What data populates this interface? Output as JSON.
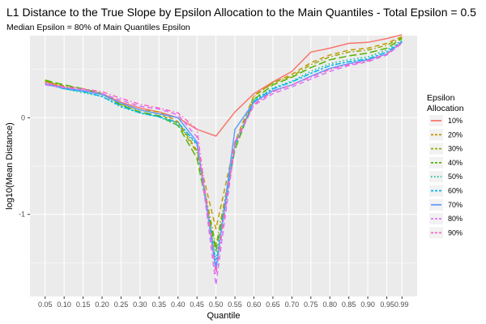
{
  "chart_data": {
    "type": "line",
    "title": "L1 Distance to the True Slope by Epsilon Allocation to the Main Quantiles - Total Epsilon = 0.5",
    "subtitle": "Median Epsilon = 80% of Main Quantiles Epsilon",
    "xlabel": "Quantile",
    "ylabel": "log10(Mean Distance)",
    "x": [
      0.05,
      0.1,
      0.15,
      0.2,
      0.25,
      0.3,
      0.35,
      0.4,
      0.45,
      0.5,
      0.55,
      0.6,
      0.65,
      0.7,
      0.75,
      0.8,
      0.85,
      0.9,
      0.95,
      0.99
    ],
    "x_tick_labels": [
      "0.05",
      "0.10",
      "0.15",
      "0.20",
      "0.25",
      "0.30",
      "0.35",
      "0.40",
      "0.45",
      "0.50",
      "0.55",
      "0.60",
      "0.65",
      "0.70",
      "0.75",
      "0.80",
      "0.85",
      "0.90",
      "0.950.99"
    ],
    "xlim": [
      0.01,
      1.03
    ],
    "ylim": [
      -1.85,
      0.85
    ],
    "y_ticks": [
      -1,
      0
    ],
    "y_tick_labels": [
      "-1",
      "0"
    ],
    "grid": true,
    "legend_position": "right",
    "legend_title": "Epsilon\nAllocation",
    "series": [
      {
        "name": "10%",
        "color": "#F8766D",
        "dash": "solid",
        "values": [
          0.37,
          0.31,
          0.28,
          0.25,
          0.16,
          0.1,
          0.06,
          0.0,
          -0.12,
          -0.19,
          0.06,
          0.25,
          0.37,
          0.48,
          0.68,
          0.72,
          0.77,
          0.78,
          0.82,
          0.86
        ]
      },
      {
        "name": "20%",
        "color": "#C49A00",
        "dash": "dashed",
        "values": [
          0.38,
          0.32,
          0.28,
          0.24,
          0.14,
          0.08,
          0.06,
          -0.04,
          -0.34,
          -1.15,
          -0.25,
          0.23,
          0.36,
          0.45,
          0.57,
          0.65,
          0.7,
          0.72,
          0.77,
          0.84
        ]
      },
      {
        "name": "30%",
        "color": "#99A800",
        "dash": "dotdash",
        "values": [
          0.38,
          0.33,
          0.3,
          0.25,
          0.14,
          0.08,
          0.04,
          -0.06,
          -0.36,
          -1.33,
          -0.28,
          0.22,
          0.36,
          0.43,
          0.55,
          0.63,
          0.68,
          0.7,
          0.75,
          0.83
        ]
      },
      {
        "name": "40%",
        "color": "#53B400",
        "dash": "longdash",
        "values": [
          0.39,
          0.34,
          0.3,
          0.25,
          0.13,
          0.06,
          0.02,
          -0.08,
          -0.42,
          -1.38,
          -0.33,
          0.19,
          0.34,
          0.42,
          0.52,
          0.6,
          0.64,
          0.67,
          0.72,
          0.82
        ]
      },
      {
        "name": "50%",
        "color": "#00C094",
        "dash": "dotted",
        "values": [
          0.36,
          0.3,
          0.26,
          0.22,
          0.11,
          0.05,
          0.01,
          -0.08,
          -0.28,
          -1.47,
          -0.3,
          0.18,
          0.31,
          0.38,
          0.48,
          0.56,
          0.6,
          0.63,
          0.7,
          0.8
        ]
      },
      {
        "name": "60%",
        "color": "#00B6EB",
        "dash": "twodash",
        "values": [
          0.35,
          0.3,
          0.27,
          0.22,
          0.12,
          0.05,
          0.01,
          -0.05,
          -0.27,
          -1.52,
          -0.27,
          0.17,
          0.3,
          0.37,
          0.46,
          0.54,
          0.58,
          0.61,
          0.68,
          0.79
        ]
      },
      {
        "name": "70%",
        "color": "#619CFF",
        "dash": "solid",
        "values": [
          0.35,
          0.31,
          0.28,
          0.24,
          0.15,
          0.08,
          0.04,
          0.0,
          -0.25,
          -1.58,
          -0.12,
          0.16,
          0.28,
          0.34,
          0.43,
          0.51,
          0.56,
          0.6,
          0.66,
          0.78
        ]
      },
      {
        "name": "80%",
        "color": "#DB72FB",
        "dash": "dashed",
        "values": [
          0.34,
          0.31,
          0.29,
          0.25,
          0.18,
          0.12,
          0.09,
          0.03,
          -0.2,
          -1.73,
          -0.27,
          0.13,
          0.25,
          0.32,
          0.4,
          0.48,
          0.54,
          0.58,
          0.65,
          0.77
        ]
      },
      {
        "name": "90%",
        "color": "#FF61C3",
        "dash": "dotdash",
        "values": [
          0.36,
          0.32,
          0.3,
          0.27,
          0.2,
          0.14,
          0.1,
          0.05,
          -0.12,
          -1.62,
          -0.25,
          0.14,
          0.27,
          0.34,
          0.42,
          0.5,
          0.55,
          0.59,
          0.66,
          0.78
        ]
      }
    ]
  }
}
